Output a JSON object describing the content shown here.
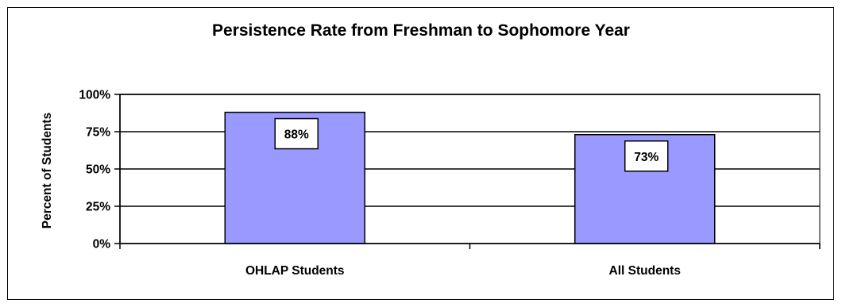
{
  "chart_data": {
    "type": "bar",
    "title": "Persistence Rate from Freshman to Sophomore Year",
    "ylabel": "Percent of Students",
    "xlabel": "",
    "categories": [
      "OHLAP Students",
      "All Students"
    ],
    "values": [
      88,
      73
    ],
    "data_labels": [
      "88%",
      "73%"
    ],
    "ylim": [
      0,
      100
    ],
    "yticks": [
      0,
      25,
      50,
      75,
      100
    ],
    "ytick_labels": [
      "0%",
      "25%",
      "50%",
      "75%",
      "100%"
    ],
    "grid": true,
    "legend": "none",
    "colors": {
      "bar_fill": "#9999FF",
      "bar_stroke": "#000000",
      "plot_border": "#808080",
      "gridline": "#000000"
    }
  }
}
